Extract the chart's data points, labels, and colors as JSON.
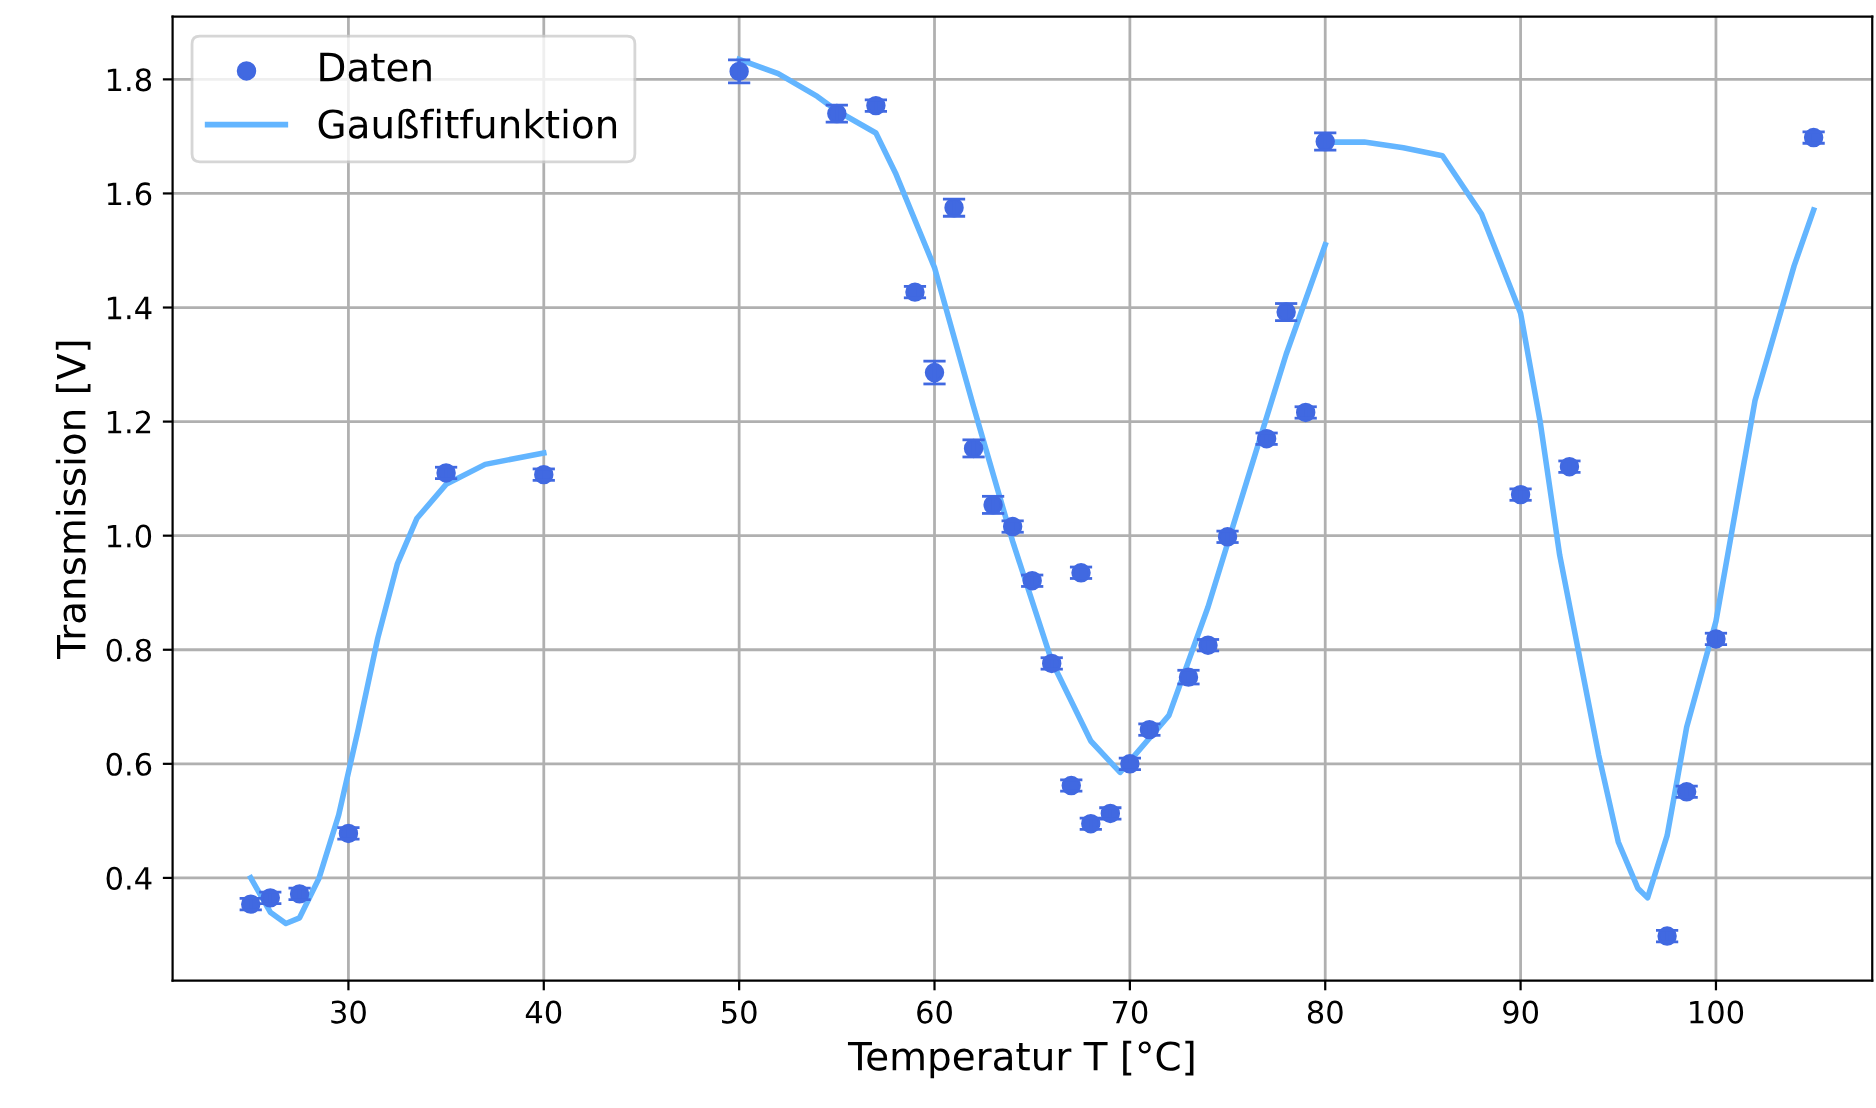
{
  "chart_data": {
    "type": "scatter",
    "xlabel": "Temperatur T [°C]",
    "ylabel": "Transmission [V]",
    "xlim": [
      21,
      108
    ],
    "ylim": [
      0.22,
      1.91
    ],
    "xticks": [
      30,
      40,
      50,
      60,
      70,
      80,
      90,
      100
    ],
    "yticks": [
      0.4,
      0.6,
      0.8,
      {
        "value": 1.0,
        "label": "1.0"
      },
      1.2,
      1.4,
      1.6,
      1.8
    ],
    "grid": true,
    "legend": "top left",
    "series": [
      {
        "name": "Daten",
        "marker": "circle",
        "color": "#4169e1",
        "x": [
          25,
          26,
          27.5,
          30,
          35,
          40,
          50,
          55,
          57,
          59,
          60,
          61,
          62,
          63,
          64,
          65,
          66,
          67,
          67.5,
          68,
          69,
          70,
          71,
          73,
          74,
          75,
          77,
          78,
          79,
          80,
          90,
          92.5,
          97.5,
          98.5,
          100,
          105
        ],
        "values": [
          0.354,
          0.365,
          0.372,
          0.478,
          1.11,
          1.107,
          1.814,
          1.74,
          1.754,
          1.427,
          1.286,
          1.575,
          1.153,
          1.054,
          1.016,
          0.921,
          0.776,
          0.562,
          0.935,
          0.495,
          0.513,
          0.6,
          0.66,
          0.752,
          0.808,
          0.998,
          1.17,
          1.392,
          1.216,
          1.691,
          1.072,
          1.121,
          0.298,
          0.551,
          0.819,
          1.698
        ],
        "errors": [
          0.01,
          0.01,
          0.01,
          0.01,
          0.01,
          0.01,
          0.02,
          0.015,
          0.01,
          0.01,
          0.02,
          0.015,
          0.015,
          0.015,
          0.01,
          0.01,
          0.01,
          0.01,
          0.01,
          0.01,
          0.01,
          0.01,
          0.01,
          0.012,
          0.01,
          0.01,
          0.01,
          0.015,
          0.01,
          0.015,
          0.01,
          0.01,
          0.01,
          0.01,
          0.01,
          0.01
        ]
      },
      {
        "name": "Gaußfitfunktion",
        "type": "line",
        "marker": "none",
        "line_style": "solid",
        "color": "#63b5ff",
        "x": [
          25,
          26,
          26.8,
          27.5,
          28.5,
          29.5,
          30.5,
          31.5,
          32.5,
          33.5,
          35,
          37,
          40,
          45,
          50,
          52,
          54,
          55,
          57,
          58,
          60,
          62,
          64,
          66,
          68,
          69.5,
          72,
          74,
          76,
          78,
          80,
          80.005,
          80.01,
          82,
          84,
          86,
          88,
          90,
          91,
          92,
          94,
          95,
          96,
          96.5,
          97.5,
          98.5,
          100,
          102,
          104,
          105
        ],
        "values": [
          0.4,
          0.34,
          0.32,
          0.33,
          0.4,
          0.51,
          0.66,
          0.82,
          0.95,
          1.03,
          1.09,
          1.125,
          1.145,
          null,
          1.835,
          1.81,
          1.77,
          1.745,
          1.706,
          1.636,
          1.47,
          1.226,
          0.99,
          0.78,
          0.64,
          0.585,
          0.685,
          0.875,
          1.097,
          1.318,
          1.51,
          null,
          1.69,
          1.69,
          1.68,
          1.666,
          1.564,
          1.39,
          1.2,
          0.966,
          0.615,
          0.463,
          0.382,
          0.365,
          0.474,
          0.664,
          0.85,
          1.237,
          1.473,
          1.571
        ]
      }
    ]
  }
}
